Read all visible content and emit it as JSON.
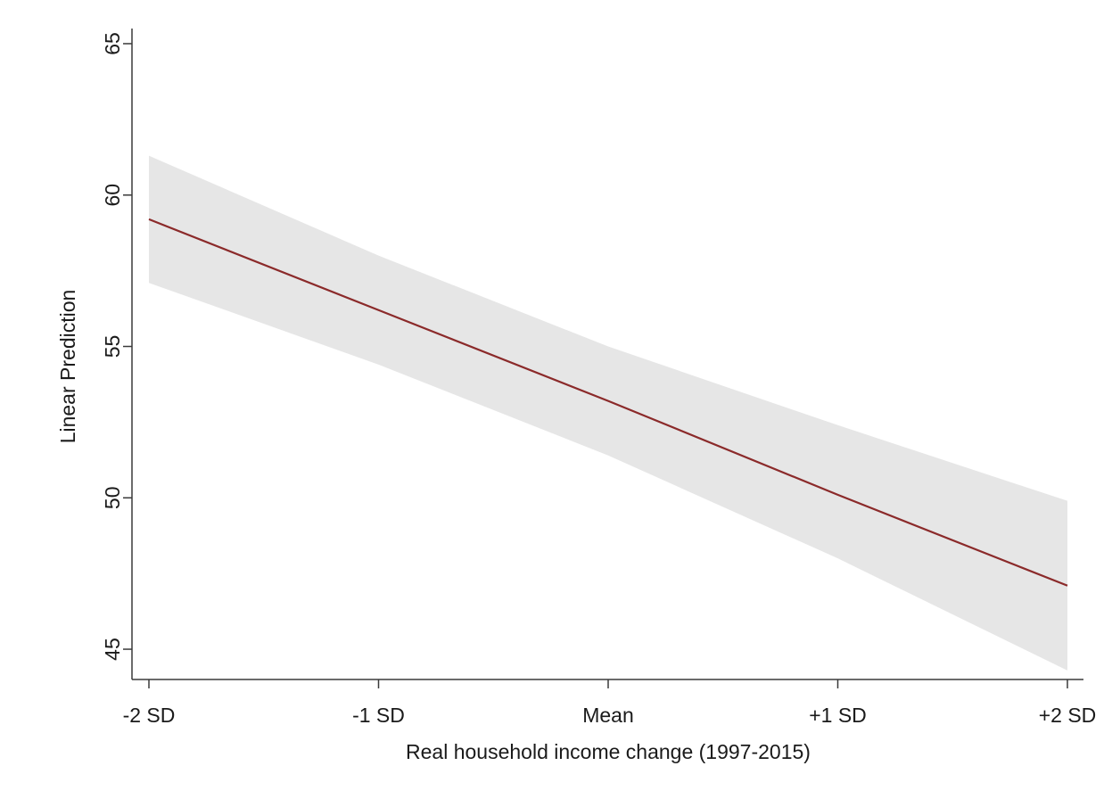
{
  "chart_data": {
    "type": "line",
    "title": "",
    "xlabel": "Real household income change (1997-2015)",
    "ylabel": "Linear Prediction",
    "categories": [
      "-2 SD",
      "-1 SD",
      "Mean",
      "+1 SD",
      "+2 SD"
    ],
    "series": [
      {
        "values": [
          59.2,
          56.2,
          53.2,
          50.1,
          47.1
        ],
        "ci_lower": [
          57.1,
          54.4,
          51.4,
          48.0,
          44.3
        ],
        "ci_upper": [
          61.3,
          58.0,
          55.0,
          52.4,
          49.9
        ]
      }
    ],
    "ylim": [
      44,
      65.5
    ],
    "yticks": [
      45,
      50,
      55,
      60,
      65
    ],
    "grid": false,
    "legend": "none",
    "line_color": "#8b2a2a",
    "ci_color": "#e6e6e6"
  }
}
